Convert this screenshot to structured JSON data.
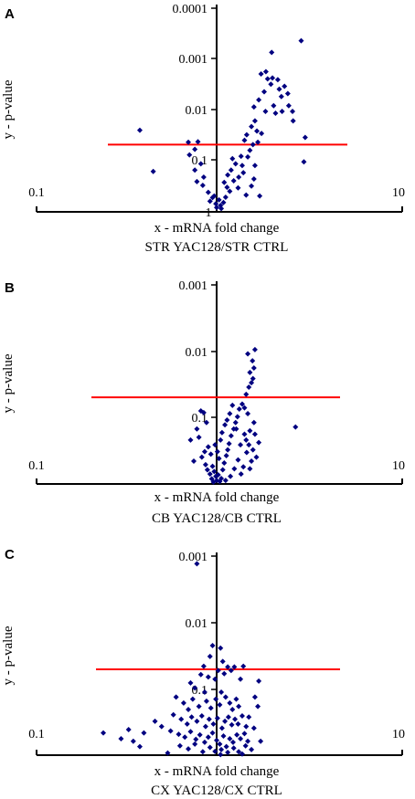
{
  "chart_data": [
    {
      "panel": "A",
      "type": "scatter",
      "xlabel": "x - mRNA fold change",
      "ylabel": "y - p-value",
      "subtitle": "STR YAC128/STR CTRL",
      "xscale": "log",
      "yscale": "log_reversed",
      "xlim": [
        0.1,
        10
      ],
      "ylim": [
        1,
        0.0001
      ],
      "x_ticks": [
        "0.1",
        "1",
        "10"
      ],
      "y_ticks": [
        "0.0001",
        "0.001",
        "0.01",
        "0.1"
      ],
      "threshold_p": 0.05,
      "threshold_color": "#ff0000",
      "marker_color": "#000080",
      "points": [
        [
          0.38,
          0.026
        ],
        [
          0.45,
          0.17
        ],
        [
          0.7,
          0.045
        ],
        [
          0.79,
          0.044
        ],
        [
          0.76,
          0.062
        ],
        [
          0.71,
          0.08
        ],
        [
          0.76,
          0.16
        ],
        [
          0.82,
          0.12
        ],
        [
          0.85,
          0.22
        ],
        [
          0.78,
          0.27
        ],
        [
          0.84,
          0.32
        ],
        [
          0.9,
          0.44
        ],
        [
          0.92,
          0.66
        ],
        [
          0.95,
          0.56
        ],
        [
          0.99,
          0.74
        ],
        [
          1.0,
          0.88
        ],
        [
          1.03,
          0.62
        ],
        [
          1.05,
          0.8
        ],
        [
          1.06,
          0.92
        ],
        [
          0.97,
          0.52
        ],
        [
          1.09,
          0.7
        ],
        [
          1.12,
          0.55
        ],
        [
          1.14,
          0.35
        ],
        [
          1.18,
          0.42
        ],
        [
          1.1,
          0.28
        ],
        [
          1.15,
          0.2
        ],
        [
          1.2,
          0.16
        ],
        [
          1.24,
          0.26
        ],
        [
          1.27,
          0.12
        ],
        [
          1.32,
          0.22
        ],
        [
          1.22,
          0.095
        ],
        [
          1.36,
          0.085
        ],
        [
          1.4,
          0.18
        ],
        [
          1.31,
          0.36
        ],
        [
          1.45,
          0.5
        ],
        [
          1.38,
          0.13
        ],
        [
          1.48,
          0.088
        ],
        [
          1.52,
          0.065
        ],
        [
          1.55,
          0.33
        ],
        [
          1.6,
          0.24
        ],
        [
          1.58,
          0.05
        ],
        [
          1.68,
          0.045
        ],
        [
          1.72,
          0.52
        ],
        [
          1.62,
          0.13
        ],
        [
          1.42,
          0.041
        ],
        [
          1.46,
          0.032
        ],
        [
          1.55,
          0.022
        ],
        [
          1.62,
          0.017
        ],
        [
          1.66,
          0.027
        ],
        [
          1.76,
          0.03
        ],
        [
          1.85,
          0.011
        ],
        [
          1.6,
          0.009
        ],
        [
          1.7,
          0.0065
        ],
        [
          1.82,
          0.0045
        ],
        [
          1.86,
          0.0018
        ],
        [
          1.9,
          0.0025
        ],
        [
          1.98,
          0.0032
        ],
        [
          2.05,
          0.0085
        ],
        [
          2.1,
          0.012
        ],
        [
          2.16,
          0.0026
        ],
        [
          2.2,
          0.004
        ],
        [
          2.26,
          0.0056
        ],
        [
          2.35,
          0.0035
        ],
        [
          2.45,
          0.0049
        ],
        [
          2.48,
          0.0085
        ],
        [
          1.75,
          0.002
        ],
        [
          2.02,
          0.0024
        ],
        [
          2.28,
          0.011
        ],
        [
          2.6,
          0.011
        ],
        [
          2.62,
          0.017
        ],
        [
          2.0,
          0.00075
        ],
        [
          2.9,
          0.00044
        ],
        [
          3.05,
          0.036
        ],
        [
          3.0,
          0.11
        ]
      ]
    },
    {
      "panel": "B",
      "type": "scatter",
      "xlabel": "x - mRNA fold change",
      "ylabel": "y - p-value",
      "subtitle": "CB YAC128/CB CTRL",
      "xscale": "log",
      "yscale": "log_reversed",
      "xlim": [
        0.1,
        10
      ],
      "ylim": [
        1,
        0.001
      ],
      "x_ticks": [
        "0.1",
        "10"
      ],
      "y_ticks": [
        "0.001",
        "0.01",
        "0.1"
      ],
      "threshold_p": 0.05,
      "threshold_color": "#ff0000",
      "marker_color": "#000080",
      "points": [
        [
          0.82,
          0.08
        ],
        [
          0.85,
          0.085
        ],
        [
          0.78,
          0.15
        ],
        [
          0.88,
          0.12
        ],
        [
          0.72,
          0.22
        ],
        [
          0.8,
          0.2
        ],
        [
          0.86,
          0.33
        ],
        [
          0.9,
          0.28
        ],
        [
          0.75,
          0.46
        ],
        [
          0.83,
          0.4
        ],
        [
          0.93,
          0.36
        ],
        [
          0.87,
          0.52
        ],
        [
          0.95,
          0.55
        ],
        [
          0.97,
          0.66
        ],
        [
          0.99,
          0.78
        ],
        [
          1.0,
          0.9
        ],
        [
          1.02,
          0.74
        ],
        [
          0.96,
          0.95
        ],
        [
          1.04,
          0.93
        ],
        [
          0.94,
          0.85
        ],
        [
          1.06,
          0.84
        ],
        [
          0.92,
          0.72
        ],
        [
          1.08,
          0.62
        ],
        [
          0.89,
          0.62
        ],
        [
          1.1,
          0.49
        ],
        [
          1.03,
          0.42
        ],
        [
          1.13,
          0.38
        ],
        [
          1.01,
          0.33
        ],
        [
          1.15,
          0.31
        ],
        [
          0.98,
          0.26
        ],
        [
          1.17,
          0.25
        ],
        [
          1.05,
          0.22
        ],
        [
          1.2,
          0.19
        ],
        [
          1.07,
          0.17
        ],
        [
          1.24,
          0.15
        ],
        [
          1.11,
          0.13
        ],
        [
          1.27,
          0.12
        ],
        [
          1.14,
          0.11
        ],
        [
          1.3,
          0.098
        ],
        [
          1.18,
          0.088
        ],
        [
          1.33,
          0.075
        ],
        [
          1.22,
          0.066
        ],
        [
          1.38,
          0.063
        ],
        [
          1.28,
          0.15
        ],
        [
          1.42,
          0.18
        ],
        [
          1.35,
          0.26
        ],
        [
          1.46,
          0.34
        ],
        [
          1.31,
          0.44
        ],
        [
          1.5,
          0.26
        ],
        [
          1.4,
          0.56
        ],
        [
          1.55,
          0.46
        ],
        [
          1.45,
          0.22
        ],
        [
          1.6,
          0.12
        ],
        [
          1.48,
          0.088
        ],
        [
          1.52,
          0.16
        ],
        [
          1.58,
          0.31
        ],
        [
          1.62,
          0.18
        ],
        [
          1.65,
          0.4
        ],
        [
          1.25,
          0.6
        ],
        [
          1.19,
          0.78
        ],
        [
          1.12,
          0.9
        ],
        [
          1.45,
          0.045
        ],
        [
          1.5,
          0.035
        ],
        [
          1.55,
          0.03
        ],
        [
          1.58,
          0.026
        ],
        [
          1.52,
          0.021
        ],
        [
          1.6,
          0.018
        ],
        [
          1.57,
          0.014
        ],
        [
          1.48,
          0.011
        ],
        [
          1.62,
          0.0095
        ],
        [
          1.42,
          0.072
        ],
        [
          1.52,
          0.6
        ],
        [
          1.7,
          0.24
        ],
        [
          1.36,
          0.72
        ],
        [
          2.7,
          0.14
        ]
      ]
    },
    {
      "panel": "C",
      "type": "scatter",
      "xlabel": "x - mRNA fold change",
      "ylabel": "y - p-value",
      "subtitle": "CX YAC128/CX CTRL",
      "xscale": "log",
      "yscale": "log_reversed",
      "xlim": [
        0.1,
        10
      ],
      "ylim": [
        1,
        0.001
      ],
      "x_ticks": [
        "0.1",
        "10"
      ],
      "y_ticks": [
        "0.001",
        "0.01",
        "0.1"
      ],
      "threshold_p": 0.05,
      "threshold_color": "#ff0000",
      "marker_color": "#000080",
      "points": [
        [
          0.78,
          0.0013
        ],
        [
          0.95,
          0.022
        ],
        [
          1.05,
          0.024
        ],
        [
          0.92,
          0.032
        ],
        [
          1.08,
          0.038
        ],
        [
          1.15,
          0.046
        ],
        [
          0.85,
          0.045
        ],
        [
          0.82,
          0.06
        ],
        [
          0.9,
          0.065
        ],
        [
          1.1,
          0.058
        ],
        [
          1.2,
          0.052
        ],
        [
          0.98,
          0.07
        ],
        [
          1.02,
          0.052
        ],
        [
          1.25,
          0.046
        ],
        [
          0.72,
          0.08
        ],
        [
          0.76,
          0.095
        ],
        [
          0.86,
          0.11
        ],
        [
          1.06,
          0.11
        ],
        [
          1.35,
          0.07
        ],
        [
          1.4,
          0.045
        ],
        [
          0.6,
          0.13
        ],
        [
          0.66,
          0.16
        ],
        [
          0.7,
          0.2
        ],
        [
          0.74,
          0.14
        ],
        [
          0.8,
          0.18
        ],
        [
          0.88,
          0.15
        ],
        [
          0.93,
          0.19
        ],
        [
          0.99,
          0.14
        ],
        [
          1.04,
          0.17
        ],
        [
          1.12,
          0.13
        ],
        [
          1.18,
          0.16
        ],
        [
          1.22,
          0.2
        ],
        [
          1.28,
          0.14
        ],
        [
          1.32,
          0.18
        ],
        [
          0.58,
          0.24
        ],
        [
          0.64,
          0.28
        ],
        [
          0.69,
          0.33
        ],
        [
          0.73,
          0.26
        ],
        [
          0.78,
          0.3
        ],
        [
          0.83,
          0.25
        ],
        [
          0.87,
          0.36
        ],
        [
          0.91,
          0.28
        ],
        [
          0.96,
          0.33
        ],
        [
          1.01,
          0.27
        ],
        [
          1.07,
          0.38
        ],
        [
          1.11,
          0.3
        ],
        [
          1.16,
          0.26
        ],
        [
          1.21,
          0.34
        ],
        [
          1.26,
          0.28
        ],
        [
          1.31,
          0.33
        ],
        [
          1.38,
          0.25
        ],
        [
          1.45,
          0.36
        ],
        [
          1.5,
          0.26
        ],
        [
          0.56,
          0.42
        ],
        [
          0.62,
          0.47
        ],
        [
          0.67,
          0.52
        ],
        [
          0.72,
          0.43
        ],
        [
          0.77,
          0.56
        ],
        [
          0.81,
          0.48
        ],
        [
          0.86,
          0.62
        ],
        [
          0.9,
          0.52
        ],
        [
          0.95,
          0.45
        ],
        [
          1.0,
          0.58
        ],
        [
          1.04,
          0.66
        ],
        [
          1.09,
          0.5
        ],
        [
          1.13,
          0.72
        ],
        [
          1.18,
          0.55
        ],
        [
          1.23,
          0.62
        ],
        [
          1.29,
          0.48
        ],
        [
          1.35,
          0.55
        ],
        [
          1.42,
          0.46
        ],
        [
          1.48,
          0.6
        ],
        [
          0.63,
          0.7
        ],
        [
          0.7,
          0.78
        ],
        [
          0.76,
          0.66
        ],
        [
          0.84,
          0.86
        ],
        [
          0.92,
          0.74
        ],
        [
          0.98,
          0.85
        ],
        [
          1.06,
          0.8
        ],
        [
          1.15,
          0.88
        ],
        [
          1.24,
          0.76
        ],
        [
          1.32,
          0.86
        ],
        [
          1.44,
          0.7
        ],
        [
          0.5,
          0.36
        ],
        [
          0.46,
          0.3
        ],
        [
          0.4,
          0.45
        ],
        [
          0.38,
          0.72
        ],
        [
          0.35,
          0.6
        ],
        [
          0.33,
          0.4
        ],
        [
          0.24,
          0.45
        ],
        [
          0.3,
          0.55
        ],
        [
          1.6,
          0.38
        ],
        [
          1.68,
          0.18
        ],
        [
          1.74,
          0.6
        ],
        [
          1.55,
          0.8
        ],
        [
          0.54,
          0.9
        ],
        [
          1.38,
          0.93
        ],
        [
          1.62,
          0.13
        ],
        [
          1.7,
          0.075
        ],
        [
          1.05,
          0.95
        ]
      ]
    }
  ]
}
